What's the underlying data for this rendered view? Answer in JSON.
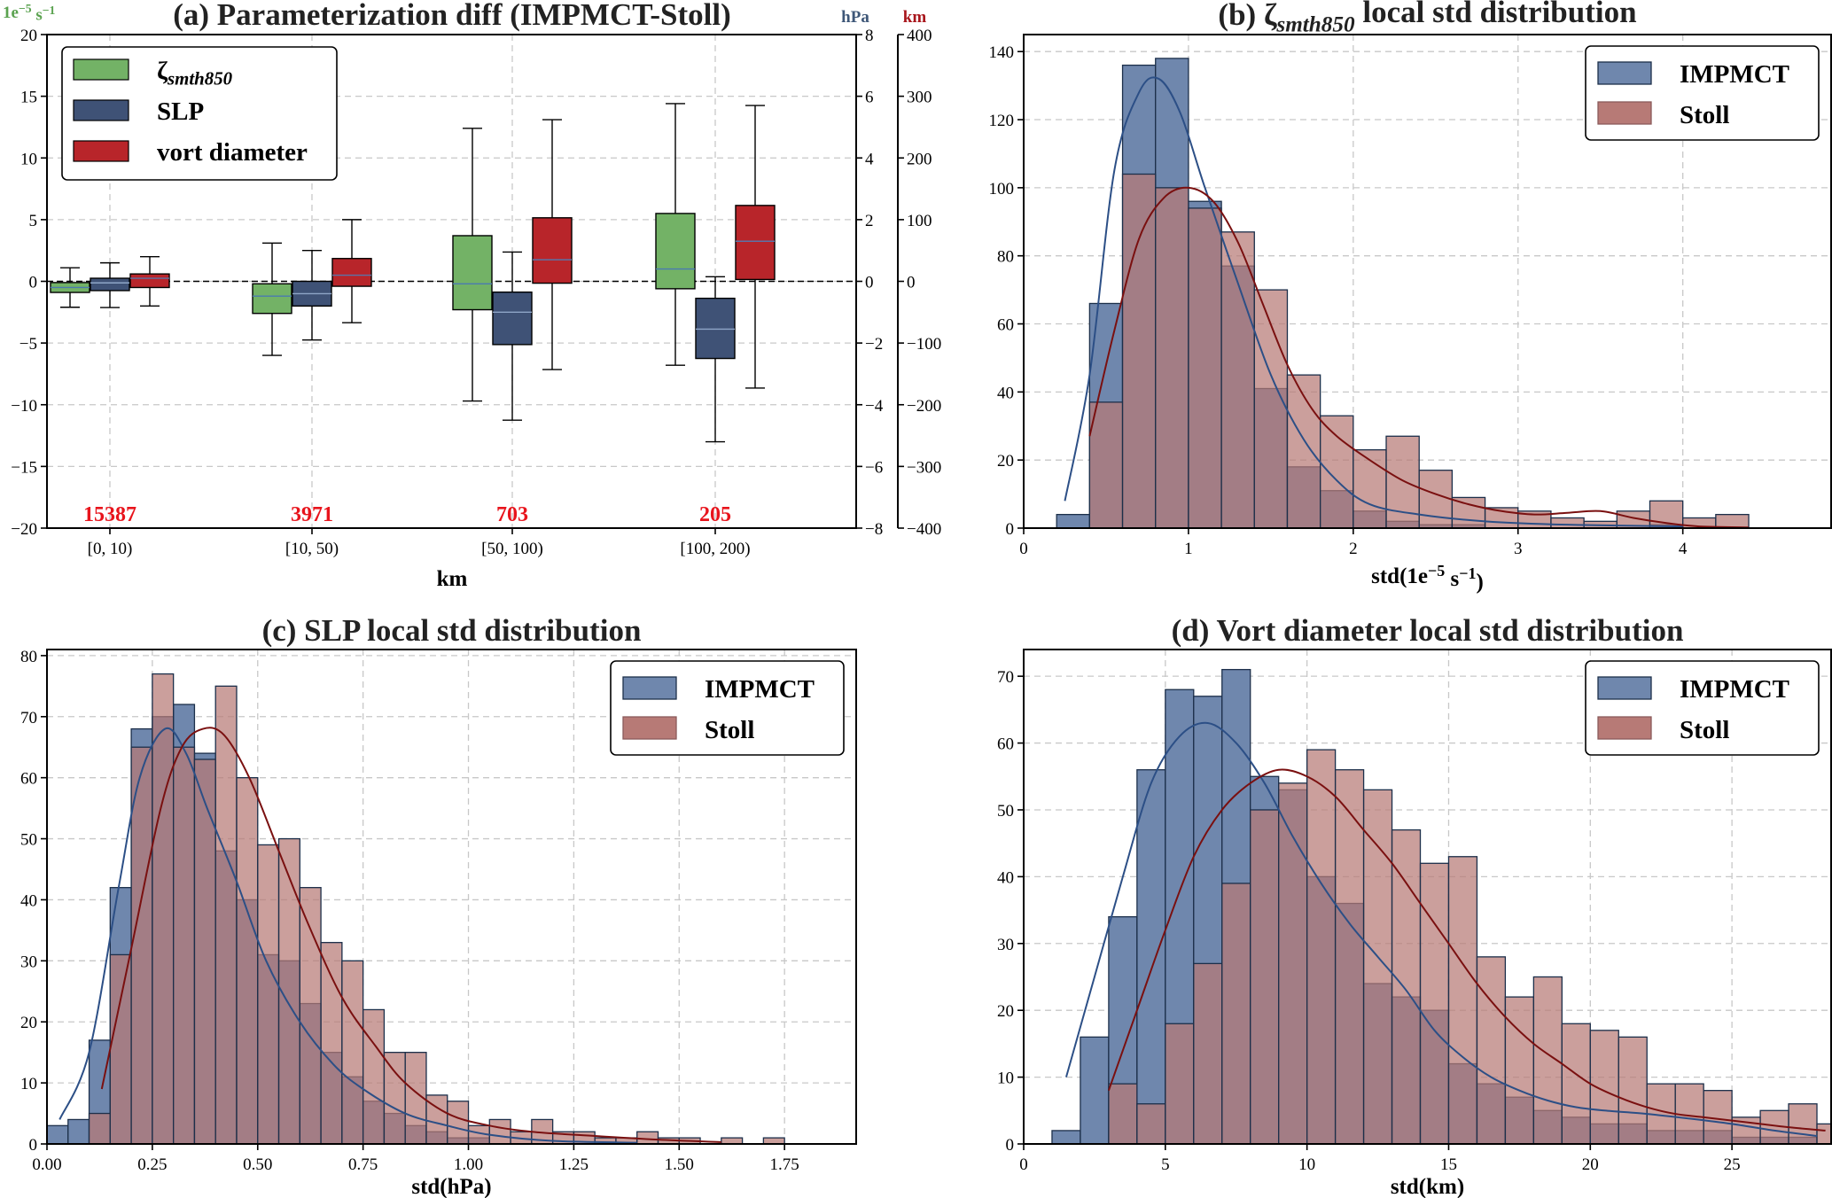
{
  "colors": {
    "impmct_fill": "#6f87ad",
    "impmct_edge": "#1c2f4a",
    "impmct_curve": "#2c4f86",
    "stoll_fill": "#b77a76",
    "stoll_overlap": "#7b4f5e",
    "stoll_curve": "#7a1010",
    "box_green": "#73b266",
    "box_blue": "#3f5276",
    "box_red": "#b8252a",
    "axis_green": "#5aa24f",
    "axis_blue": "#3e5778",
    "axis_red": "#a8161c",
    "count_red": "#e8141c"
  },
  "chart_data": [
    {
      "id": "a",
      "type": "box",
      "title": "(a) Parameterization diff (IMPMCT-Stoll)",
      "xlabel": "km",
      "categories": [
        "[0, 10)",
        "[10, 50)",
        "[50, 100)",
        "[100, 200)"
      ],
      "counts": [
        "15387",
        "3971",
        "703",
        "205"
      ],
      "legend_position": "top-left",
      "axes": [
        {
          "side": "left",
          "unit_label": "1e−5 s−1",
          "ylim": [
            -20,
            20
          ],
          "ticks": [
            -20,
            -15,
            -10,
            -5,
            0,
            5,
            10,
            15,
            20
          ],
          "tick_labels": [
            "−20",
            "−15",
            "−10",
            "−5",
            "0",
            "5",
            "10",
            "15",
            "20"
          ],
          "color_key": "axis_green"
        },
        {
          "side": "right-inner",
          "unit_label": "hPa",
          "ylim": [
            -8,
            8
          ],
          "ticks": [
            -8,
            -6,
            -4,
            -2,
            0,
            2,
            4,
            6,
            8
          ],
          "tick_labels": [
            "−8",
            "−6",
            "−4",
            "−2",
            "0",
            "2",
            "4",
            "6",
            "8"
          ],
          "color_key": "axis_blue"
        },
        {
          "side": "right-outer",
          "unit_label": "km",
          "ylim": [
            -400,
            400
          ],
          "ticks": [
            -400,
            -300,
            -200,
            -100,
            0,
            100,
            200,
            300,
            400
          ],
          "tick_labels": [
            "−400",
            "−300",
            "−200",
            "−100",
            "0",
            "100",
            "200",
            "300",
            "400"
          ],
          "color_key": "axis_red"
        }
      ],
      "series": [
        {
          "name": "ζ",
          "name_sub": "smth850",
          "axis": 0,
          "color_key": "box_green",
          "boxes": [
            {
              "wlo": -2.1,
              "q1": -0.9,
              "med": -0.5,
              "q3": -0.1,
              "whi": 1.1
            },
            {
              "wlo": -6.0,
              "q1": -2.6,
              "med": -1.2,
              "q3": -0.2,
              "whi": 3.1
            },
            {
              "wlo": -9.7,
              "q1": -2.3,
              "med": -0.2,
              "q3": 3.7,
              "whi": 12.4
            },
            {
              "wlo": -6.8,
              "q1": -0.6,
              "med": 1.0,
              "q3": 5.5,
              "whi": 14.4
            }
          ]
        },
        {
          "name": "SLP",
          "axis": 1,
          "color_key": "box_blue",
          "boxes": [
            {
              "wlo": -0.85,
              "q1": -0.3,
              "med": -0.05,
              "q3": 0.1,
              "whi": 0.6
            },
            {
              "wlo": -1.9,
              "q1": -0.8,
              "med": -0.4,
              "q3": 0.0,
              "whi": 1.0
            },
            {
              "wlo": -4.5,
              "q1": -2.05,
              "med": -1.0,
              "q3": -0.35,
              "whi": 0.95
            },
            {
              "wlo": -5.2,
              "q1": -2.5,
              "med": -1.55,
              "q3": -0.55,
              "whi": 0.15
            }
          ]
        },
        {
          "name": "vort diameter",
          "axis": 2,
          "color_key": "box_red",
          "boxes": [
            {
              "wlo": -40,
              "q1": -10,
              "med": 5,
              "q3": 12,
              "whi": 40
            },
            {
              "wlo": -67,
              "q1": -8,
              "med": 10,
              "q3": 37,
              "whi": 100
            },
            {
              "wlo": -143,
              "q1": -3,
              "med": 35,
              "q3": 103,
              "whi": 262
            },
            {
              "wlo": -173,
              "q1": 3,
              "med": 65,
              "q3": 123,
              "whi": 285
            }
          ]
        }
      ]
    },
    {
      "id": "b",
      "type": "histogram",
      "title_prefix": "(b) ζ",
      "title_sub": "smth850",
      "title_suffix": " local std distribution",
      "xlabel": "std(1e−5 s−1)",
      "xlim": [
        0,
        4.9
      ],
      "ylim": [
        0,
        145
      ],
      "xticks": [
        0,
        1,
        2,
        3,
        4
      ],
      "xtick_labels": [
        "0",
        "1",
        "2",
        "3",
        "4"
      ],
      "yticks": [
        0,
        20,
        40,
        60,
        80,
        100,
        120,
        140
      ],
      "ytick_labels": [
        "0",
        "20",
        "40",
        "60",
        "80",
        "100",
        "120",
        "140"
      ],
      "legend_position": "top-right",
      "series": [
        {
          "name": "IMPMCT",
          "bin_start": 0.2,
          "bin_width": 0.2,
          "values": [
            4,
            66,
            136,
            138,
            96,
            77,
            41,
            18,
            11,
            5,
            2,
            1,
            1,
            0,
            0,
            0,
            0,
            0,
            1
          ],
          "kde": [
            [
              0.25,
              8
            ],
            [
              0.4,
              45
            ],
            [
              0.55,
              105
            ],
            [
              0.7,
              128
            ],
            [
              0.82,
              132
            ],
            [
              0.95,
              122
            ],
            [
              1.1,
              100
            ],
            [
              1.3,
              72
            ],
            [
              1.5,
              45
            ],
            [
              1.7,
              26
            ],
            [
              1.9,
              14
            ],
            [
              2.1,
              7
            ],
            [
              2.4,
              4
            ],
            [
              2.8,
              2
            ],
            [
              3.3,
              1
            ],
            [
              4.0,
              0.5
            ]
          ]
        },
        {
          "name": "Stoll",
          "bin_start": 0.4,
          "bin_width": 0.2,
          "values": [
            37,
            104,
            100,
            94,
            87,
            70,
            45,
            33,
            23,
            27,
            17,
            9,
            6,
            5,
            3,
            2,
            5,
            8,
            3,
            4
          ],
          "kde": [
            [
              0.4,
              27
            ],
            [
              0.55,
              58
            ],
            [
              0.7,
              85
            ],
            [
              0.85,
              97
            ],
            [
              1.0,
              100
            ],
            [
              1.15,
              96
            ],
            [
              1.3,
              84
            ],
            [
              1.45,
              66
            ],
            [
              1.6,
              48
            ],
            [
              1.75,
              35
            ],
            [
              1.9,
              27
            ],
            [
              2.1,
              20
            ],
            [
              2.3,
              14
            ],
            [
              2.5,
              10
            ],
            [
              2.7,
              7
            ],
            [
              2.9,
              5
            ],
            [
              3.1,
              4
            ],
            [
              3.3,
              4.5
            ],
            [
              3.5,
              5
            ],
            [
              3.7,
              3
            ],
            [
              3.9,
              1.5
            ],
            [
              4.1,
              0.5
            ],
            [
              4.4,
              0.2
            ]
          ]
        }
      ]
    },
    {
      "id": "c",
      "type": "histogram",
      "title": "(c) SLP local std distribution",
      "xlabel": "std(hPa)",
      "xlim": [
        0,
        1.92
      ],
      "ylim": [
        0,
        81
      ],
      "xticks": [
        0,
        0.25,
        0.5,
        0.75,
        1.0,
        1.25,
        1.5,
        1.75
      ],
      "xtick_labels": [
        "0.00",
        "0.25",
        "0.50",
        "0.75",
        "1.00",
        "1.25",
        "1.50",
        "1.75"
      ],
      "yticks": [
        0,
        10,
        20,
        30,
        40,
        50,
        60,
        70,
        80
      ],
      "ytick_labels": [
        "0",
        "10",
        "20",
        "30",
        "40",
        "50",
        "60",
        "70",
        "80"
      ],
      "legend_position": "top-right",
      "series": [
        {
          "name": "IMPMCT",
          "bin_start": 0.0,
          "bin_width": 0.05,
          "values": [
            3,
            4,
            17,
            42,
            68,
            70,
            72,
            64,
            48,
            40,
            31,
            30,
            23,
            15,
            11,
            7,
            5,
            3,
            2,
            1,
            1,
            0,
            0,
            0,
            0,
            0,
            0,
            0,
            0,
            0,
            0,
            0,
            0
          ],
          "kde": [
            [
              0.03,
              4
            ],
            [
              0.1,
              15
            ],
            [
              0.17,
              42
            ],
            [
              0.22,
              60
            ],
            [
              0.28,
              68
            ],
            [
              0.33,
              64
            ],
            [
              0.38,
              55
            ],
            [
              0.45,
              43
            ],
            [
              0.52,
              30
            ],
            [
              0.6,
              20
            ],
            [
              0.68,
              13
            ],
            [
              0.75,
              9
            ],
            [
              0.85,
              5
            ],
            [
              0.95,
              3
            ],
            [
              1.05,
              1.5
            ],
            [
              1.2,
              0.5
            ],
            [
              1.4,
              0.2
            ]
          ]
        },
        {
          "name": "Stoll",
          "bin_start": 0.1,
          "bin_width": 0.05,
          "values": [
            5,
            31,
            65,
            77,
            65,
            63,
            75,
            60,
            49,
            50,
            42,
            33,
            30,
            22,
            15,
            15,
            8,
            7,
            3,
            4,
            2,
            4,
            2,
            2,
            1,
            1,
            2,
            1,
            1,
            0,
            1,
            0,
            1
          ],
          "kde": [
            [
              0.13,
              9
            ],
            [
              0.2,
              32
            ],
            [
              0.27,
              55
            ],
            [
              0.32,
              65
            ],
            [
              0.37,
              68
            ],
            [
              0.42,
              67
            ],
            [
              0.48,
              60
            ],
            [
              0.55,
              48
            ],
            [
              0.62,
              36
            ],
            [
              0.7,
              24
            ],
            [
              0.78,
              16
            ],
            [
              0.85,
              10
            ],
            [
              0.95,
              5
            ],
            [
              1.05,
              3
            ],
            [
              1.15,
              2
            ],
            [
              1.3,
              1.3
            ],
            [
              1.45,
              0.7
            ],
            [
              1.6,
              0.3
            ]
          ]
        }
      ]
    },
    {
      "id": "d",
      "type": "histogram",
      "title": "(d) Vort diameter local std distribution",
      "xlabel": "std(km)",
      "xlim": [
        0,
        28.5
      ],
      "ylim": [
        0,
        74
      ],
      "xticks": [
        0,
        5,
        10,
        15,
        20,
        25
      ],
      "xtick_labels": [
        "0",
        "5",
        "10",
        "15",
        "20",
        "25"
      ],
      "yticks": [
        0,
        10,
        20,
        30,
        40,
        50,
        60,
        70
      ],
      "ytick_labels": [
        "0",
        "10",
        "20",
        "30",
        "40",
        "50",
        "60",
        "70"
      ],
      "legend_position": "top-right",
      "series": [
        {
          "name": "IMPMCT",
          "bin_start": 1.0,
          "bin_width": 1.0,
          "values": [
            2,
            16,
            34,
            56,
            68,
            67,
            71,
            55,
            53,
            40,
            36,
            24,
            22,
            20,
            12,
            9,
            7,
            5,
            4,
            3,
            3,
            2,
            2,
            2,
            1,
            1,
            1
          ],
          "kde": [
            [
              1.5,
              10
            ],
            [
              2.5,
              25
            ],
            [
              3.5,
              40
            ],
            [
              4.5,
              54
            ],
            [
              5.5,
              61
            ],
            [
              6.5,
              63
            ],
            [
              7.5,
              60
            ],
            [
              8.5,
              54
            ],
            [
              9.5,
              46
            ],
            [
              10.5,
              39
            ],
            [
              11.5,
              33
            ],
            [
              12.5,
              28
            ],
            [
              13.5,
              23
            ],
            [
              14.5,
              17
            ],
            [
              15.5,
              13
            ],
            [
              16.5,
              10
            ],
            [
              17.5,
              8
            ],
            [
              18.5,
              6.5
            ],
            [
              19.5,
              5.5
            ],
            [
              20.5,
              5
            ],
            [
              22,
              4.5
            ],
            [
              23.5,
              3.8
            ],
            [
              25,
              3
            ],
            [
              26.5,
              2
            ],
            [
              28,
              1.2
            ]
          ]
        },
        {
          "name": "Stoll",
          "bin_start": 3.0,
          "bin_width": 1.0,
          "values": [
            9,
            6,
            18,
            27,
            39,
            50,
            54,
            59,
            56,
            53,
            47,
            42,
            43,
            28,
            22,
            25,
            18,
            17,
            16,
            9,
            9,
            8,
            4,
            5,
            6,
            3
          ],
          "kde": [
            [
              3,
              8
            ],
            [
              4,
              20
            ],
            [
              5,
              32
            ],
            [
              6,
              43
            ],
            [
              7,
              50
            ],
            [
              8,
              54
            ],
            [
              9,
              56
            ],
            [
              10,
              55
            ],
            [
              11,
              52
            ],
            [
              12,
              47
            ],
            [
              13,
              42
            ],
            [
              14,
              36
            ],
            [
              15,
              30
            ],
            [
              16,
              24
            ],
            [
              17,
              19
            ],
            [
              18,
              15
            ],
            [
              19,
              12
            ],
            [
              20,
              9
            ],
            [
              21,
              7
            ],
            [
              22,
              5.5
            ],
            [
              23,
              4.5
            ],
            [
              24,
              4
            ],
            [
              25,
              3.5
            ],
            [
              26,
              3
            ],
            [
              27,
              2.5
            ],
            [
              28.3,
              2
            ]
          ]
        }
      ]
    }
  ]
}
